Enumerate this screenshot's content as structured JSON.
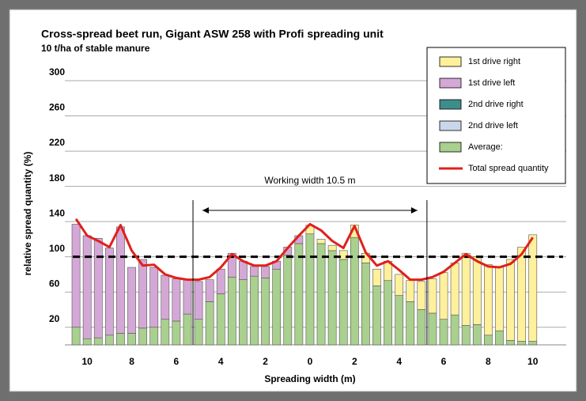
{
  "chart_data": {
    "type": "bar",
    "title": "Cross-spread beet run, Gigant ASW 258 with Profi spreading unit",
    "subtitle": "10 t/ha of stable manure",
    "x_label": "Spreading width (m)",
    "y_label": "relative spread quantity (%)",
    "annotation": "Working width 10.5 m",
    "x": [
      -10.5,
      -10,
      -9.5,
      -9,
      -8.5,
      -8,
      -7.5,
      -7,
      -6.5,
      -6,
      -5.5,
      -5,
      -4.5,
      -4,
      -3.5,
      -3,
      -2.5,
      -2,
      -1.5,
      -1,
      -0.5,
      0,
      0.5,
      1,
      1.5,
      2,
      2.5,
      3,
      3.5,
      4,
      4.5,
      5,
      5.5,
      6,
      6.5,
      7,
      7.5,
      8,
      8.5,
      9,
      9.5,
      10
    ],
    "series": [
      {
        "name": "1st drive right",
        "type": "bar",
        "color": "#fff09c",
        "values": [
          null,
          null,
          null,
          null,
          null,
          null,
          null,
          null,
          null,
          null,
          null,
          null,
          null,
          null,
          null,
          null,
          null,
          null,
          null,
          null,
          null,
          10,
          5,
          6,
          10,
          14,
          11,
          19,
          22,
          24,
          24,
          32,
          39,
          53,
          59,
          82,
          77,
          80,
          72,
          92,
          107,
          121
        ]
      },
      {
        "name": "1st drive left",
        "type": "bar",
        "color": "#d4a8d6",
        "values": [
          117,
          117,
          113,
          99,
          121,
          75,
          78,
          68,
          50,
          48,
          39,
          43,
          25,
          28,
          27,
          21,
          11,
          13,
          9,
          9,
          9,
          null,
          null,
          null,
          null,
          null,
          null,
          null,
          null,
          null,
          null,
          null,
          null,
          null,
          null,
          null,
          null,
          null,
          null,
          null,
          null,
          null
        ]
      },
      {
        "name": "2nd drive right",
        "type": "bar",
        "color": "#3f8c8c",
        "values": [
          null,
          null,
          null,
          null,
          null,
          null,
          null,
          null,
          null,
          null,
          null,
          null,
          null,
          null,
          null,
          null,
          null,
          null,
          null,
          null,
          null,
          null,
          null,
          null,
          null,
          null,
          null,
          null,
          null,
          null,
          null,
          null,
          null,
          null,
          null,
          null,
          null,
          null,
          null,
          null,
          null,
          null
        ]
      },
      {
        "name": "2nd drive left",
        "type": "bar",
        "color": "#cad7ea",
        "values": [
          null,
          null,
          null,
          null,
          null,
          null,
          null,
          null,
          null,
          null,
          null,
          null,
          null,
          null,
          null,
          null,
          null,
          null,
          null,
          null,
          null,
          null,
          null,
          null,
          null,
          null,
          null,
          null,
          null,
          null,
          null,
          null,
          null,
          null,
          null,
          null,
          null,
          null,
          null,
          null,
          null,
          null
        ]
      },
      {
        "name": "Average:",
        "type": "bar",
        "color": "#a9d08e",
        "values": [
          20,
          7,
          8,
          11,
          13,
          13,
          19,
          20,
          29,
          27,
          35,
          29,
          49,
          58,
          77,
          74,
          78,
          76,
          86,
          102,
          115,
          126,
          115,
          107,
          97,
          122,
          93,
          67,
          73,
          56,
          49,
          40,
          36,
          29,
          34,
          22,
          23,
          11,
          16,
          5,
          4,
          4
        ]
      },
      {
        "name": "Total spread quantity",
        "type": "line",
        "color": "#e0201b",
        "values": [
          143,
          124,
          118,
          111,
          136,
          107,
          90,
          91,
          80,
          76,
          74,
          74,
          77,
          88,
          103,
          95,
          90,
          90,
          95,
          110,
          124,
          137,
          130,
          118,
          110,
          135,
          105,
          90,
          95,
          85,
          74,
          74,
          77,
          83,
          93,
          103,
          95,
          89,
          88,
          92,
          103,
          122
        ]
      }
    ],
    "xlim": [
      -11,
      11.5
    ],
    "xticks": [
      {
        "value": -10,
        "label": "10"
      },
      {
        "value": -8,
        "label": "8"
      },
      {
        "value": -6,
        "label": "6"
      },
      {
        "value": -4,
        "label": "4"
      },
      {
        "value": -2,
        "label": "2"
      },
      0,
      2,
      4,
      6,
      8,
      10
    ],
    "ylim": [
      0,
      300
    ],
    "yticks": [
      20,
      60,
      100,
      140,
      180,
      220,
      260,
      300
    ],
    "hline": 100,
    "vlines": [
      -5.25,
      5.25
    ],
    "grid": true,
    "legend": "top-right"
  }
}
